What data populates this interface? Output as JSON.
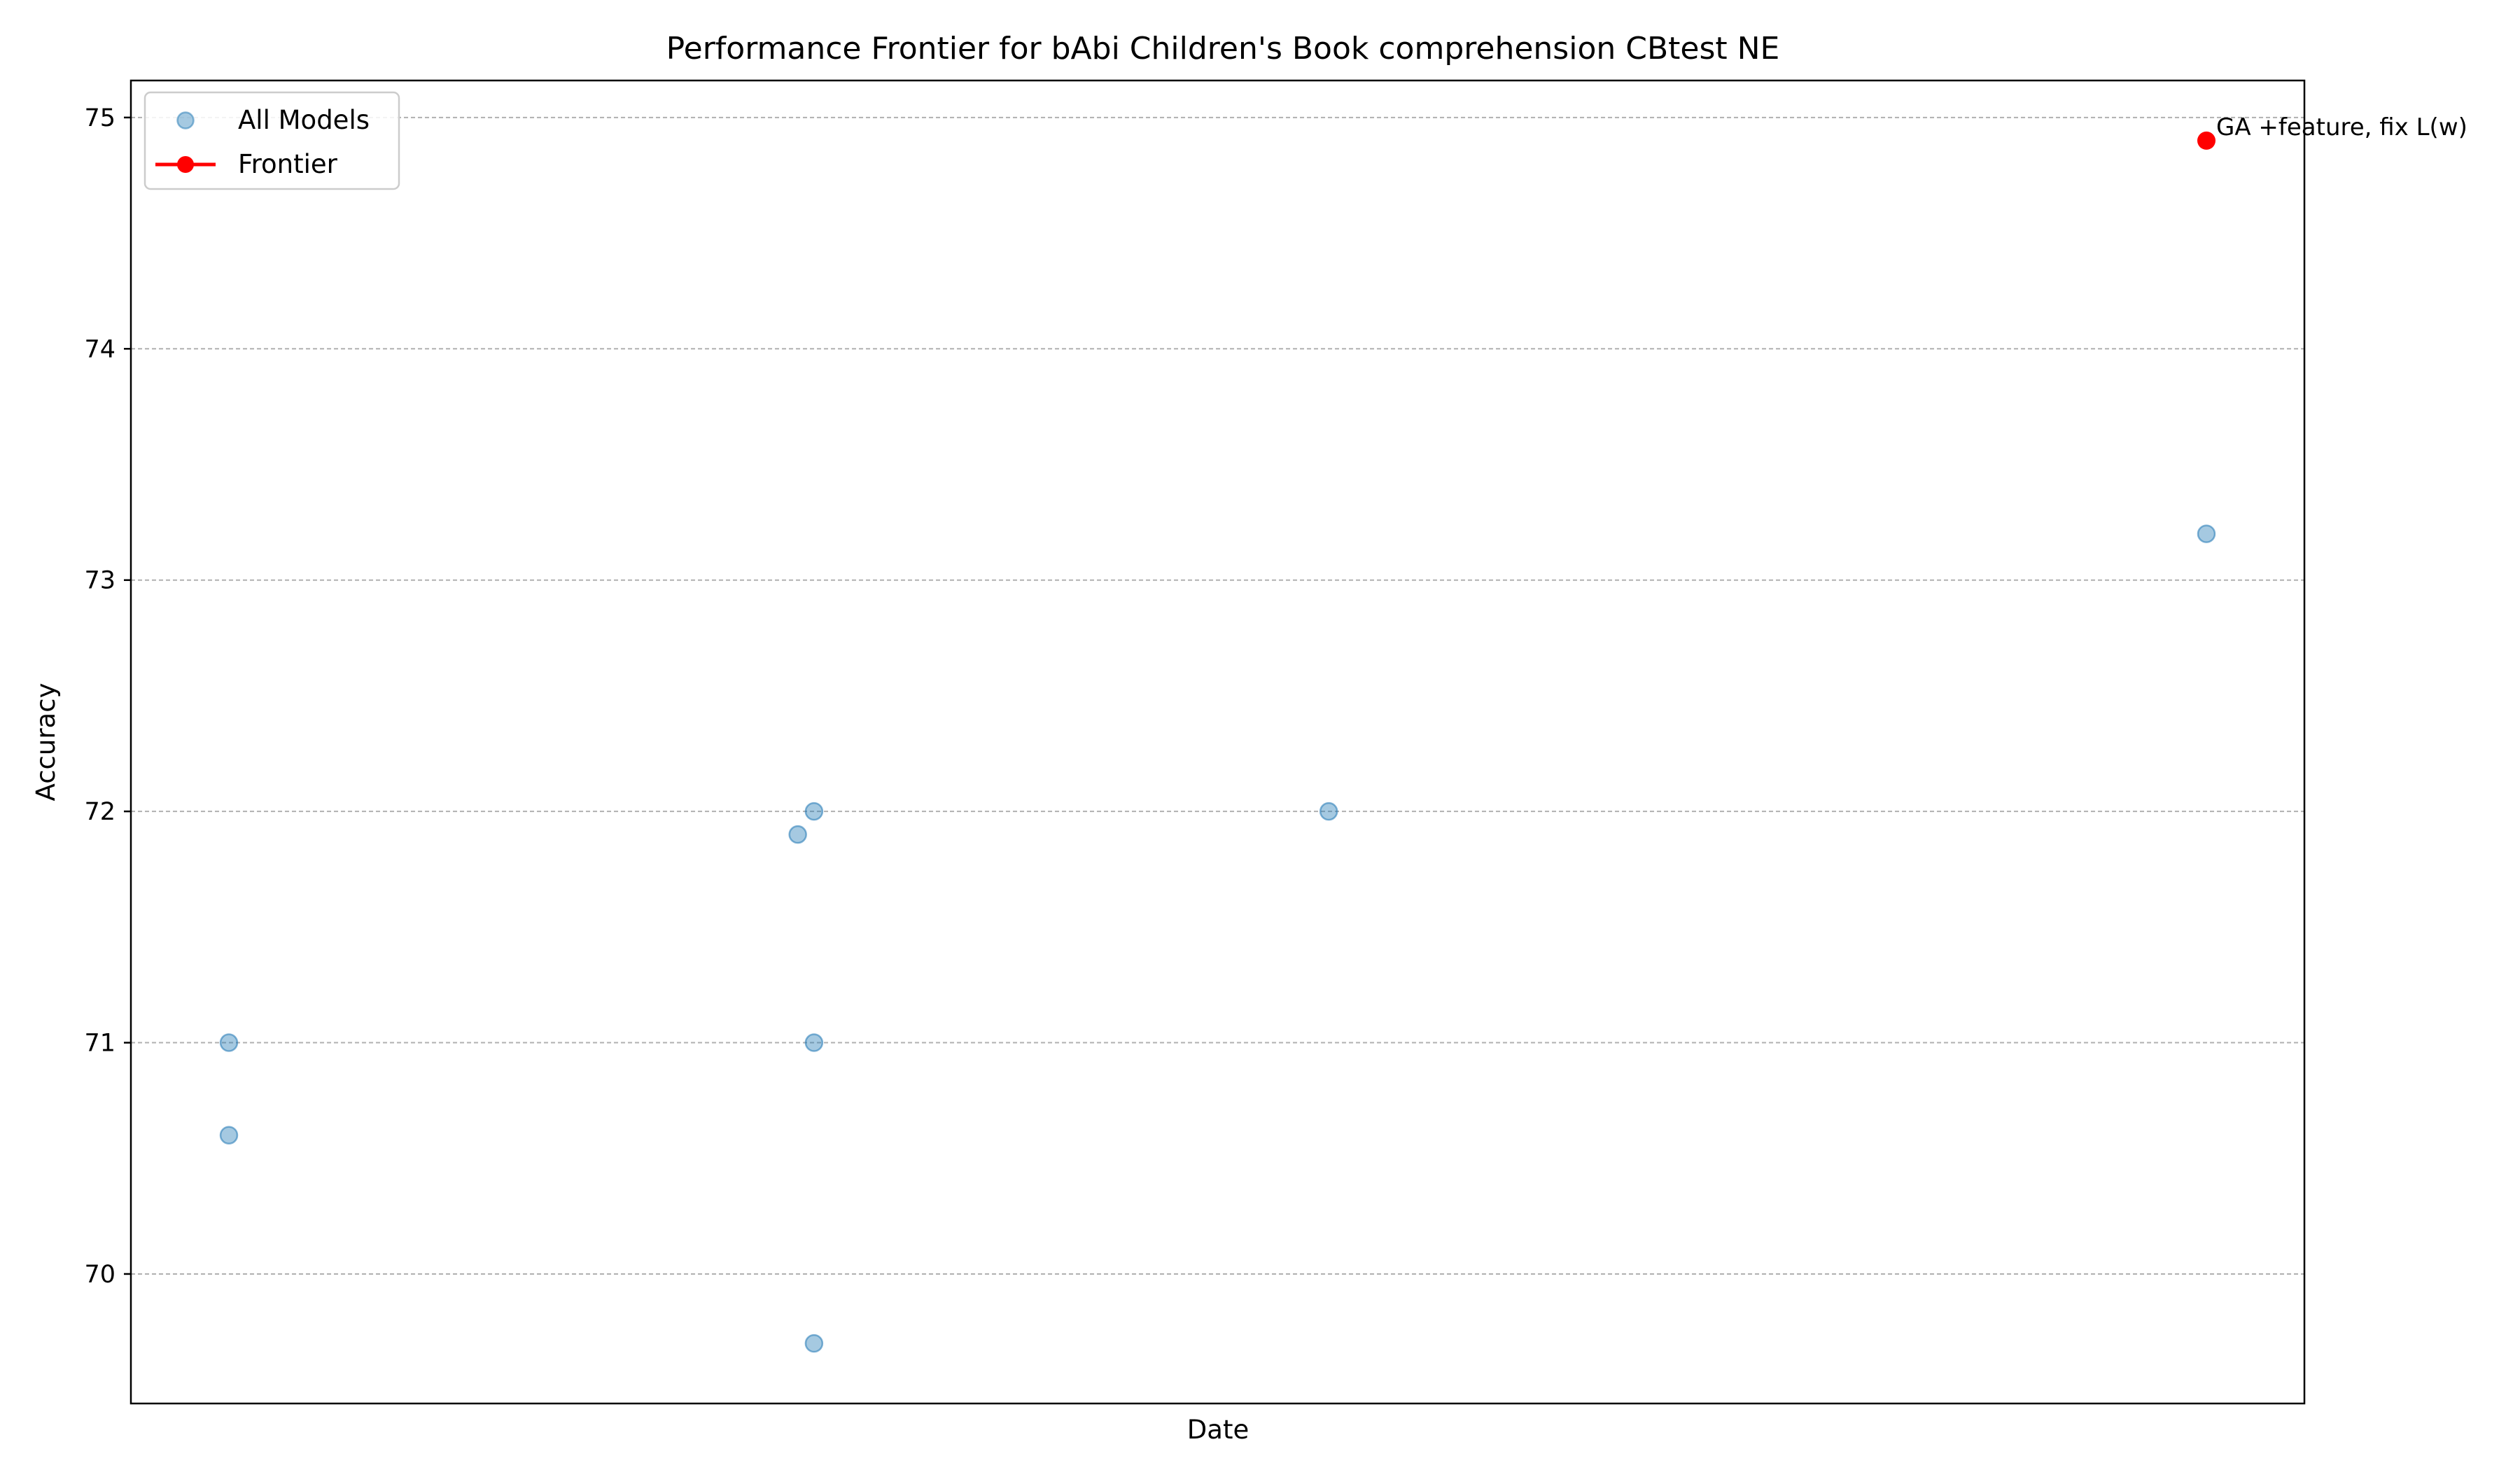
{
  "chart_data": {
    "type": "scatter",
    "title": "Performance Frontier for bAbi Children's Book comprehension CBtest NE",
    "xlabel": "Date",
    "ylabel": "Accuracy",
    "ylim": [
      69.44,
      75.16
    ],
    "yticks": [
      70,
      71,
      72,
      73,
      74,
      75
    ],
    "grid": "y-dashed",
    "legend_placement": "top-left",
    "colors": {
      "all_models": "#1f77b4",
      "frontier": "#ff0000"
    },
    "series": [
      {
        "name": "All Models",
        "points": [
          {
            "x": "2015-11-01",
            "y": 71.0
          },
          {
            "x": "2015-11-01",
            "y": 70.6
          },
          {
            "x": "2016-05-29",
            "y": 71.9
          },
          {
            "x": "2016-06-04",
            "y": 72.0
          },
          {
            "x": "2016-06-04",
            "y": 71.0
          },
          {
            "x": "2016-06-04",
            "y": 69.7
          },
          {
            "x": "2016-12-11",
            "y": 72.0
          },
          {
            "x": "2017-10-31",
            "y": 73.2
          }
        ]
      },
      {
        "name": "Frontier",
        "points": [
          {
            "x": "2017-10-31",
            "y": 74.9,
            "label": "GA +feature, fix L(w)"
          }
        ]
      }
    ]
  }
}
